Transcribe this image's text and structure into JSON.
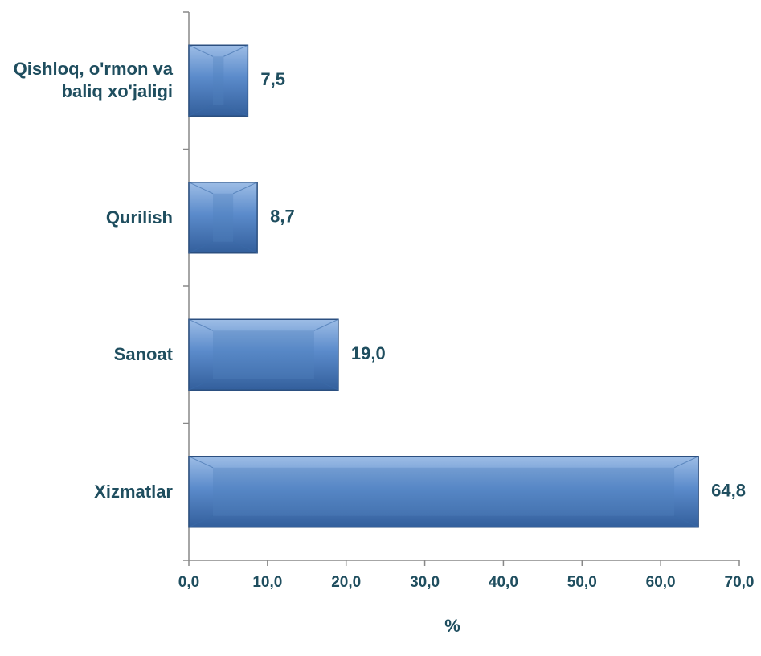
{
  "chart_data": {
    "type": "hbar",
    "categories": [
      "Qishloq, o'rmon va baliq xo'jaligi",
      "Qurilish",
      "Sanoat",
      "Xizmatlar"
    ],
    "values": [
      7.5,
      8.7,
      19.0,
      64.8
    ],
    "value_labels": [
      "7,5",
      "8,7",
      "19,0",
      "64,8"
    ],
    "color": "#4f81bd",
    "xlim": [
      0,
      70
    ],
    "xticks": [
      {
        "value": 0,
        "label": "0,0"
      },
      {
        "value": 10,
        "label": "10,0"
      },
      {
        "value": 20,
        "label": "20,0"
      },
      {
        "value": 30,
        "label": "30,0"
      },
      {
        "value": 40,
        "label": "40,0"
      },
      {
        "value": 50,
        "label": "50,0"
      },
      {
        "value": 60,
        "label": "60,0"
      },
      {
        "value": 70,
        "label": "70,0"
      }
    ],
    "x_label": "%"
  }
}
